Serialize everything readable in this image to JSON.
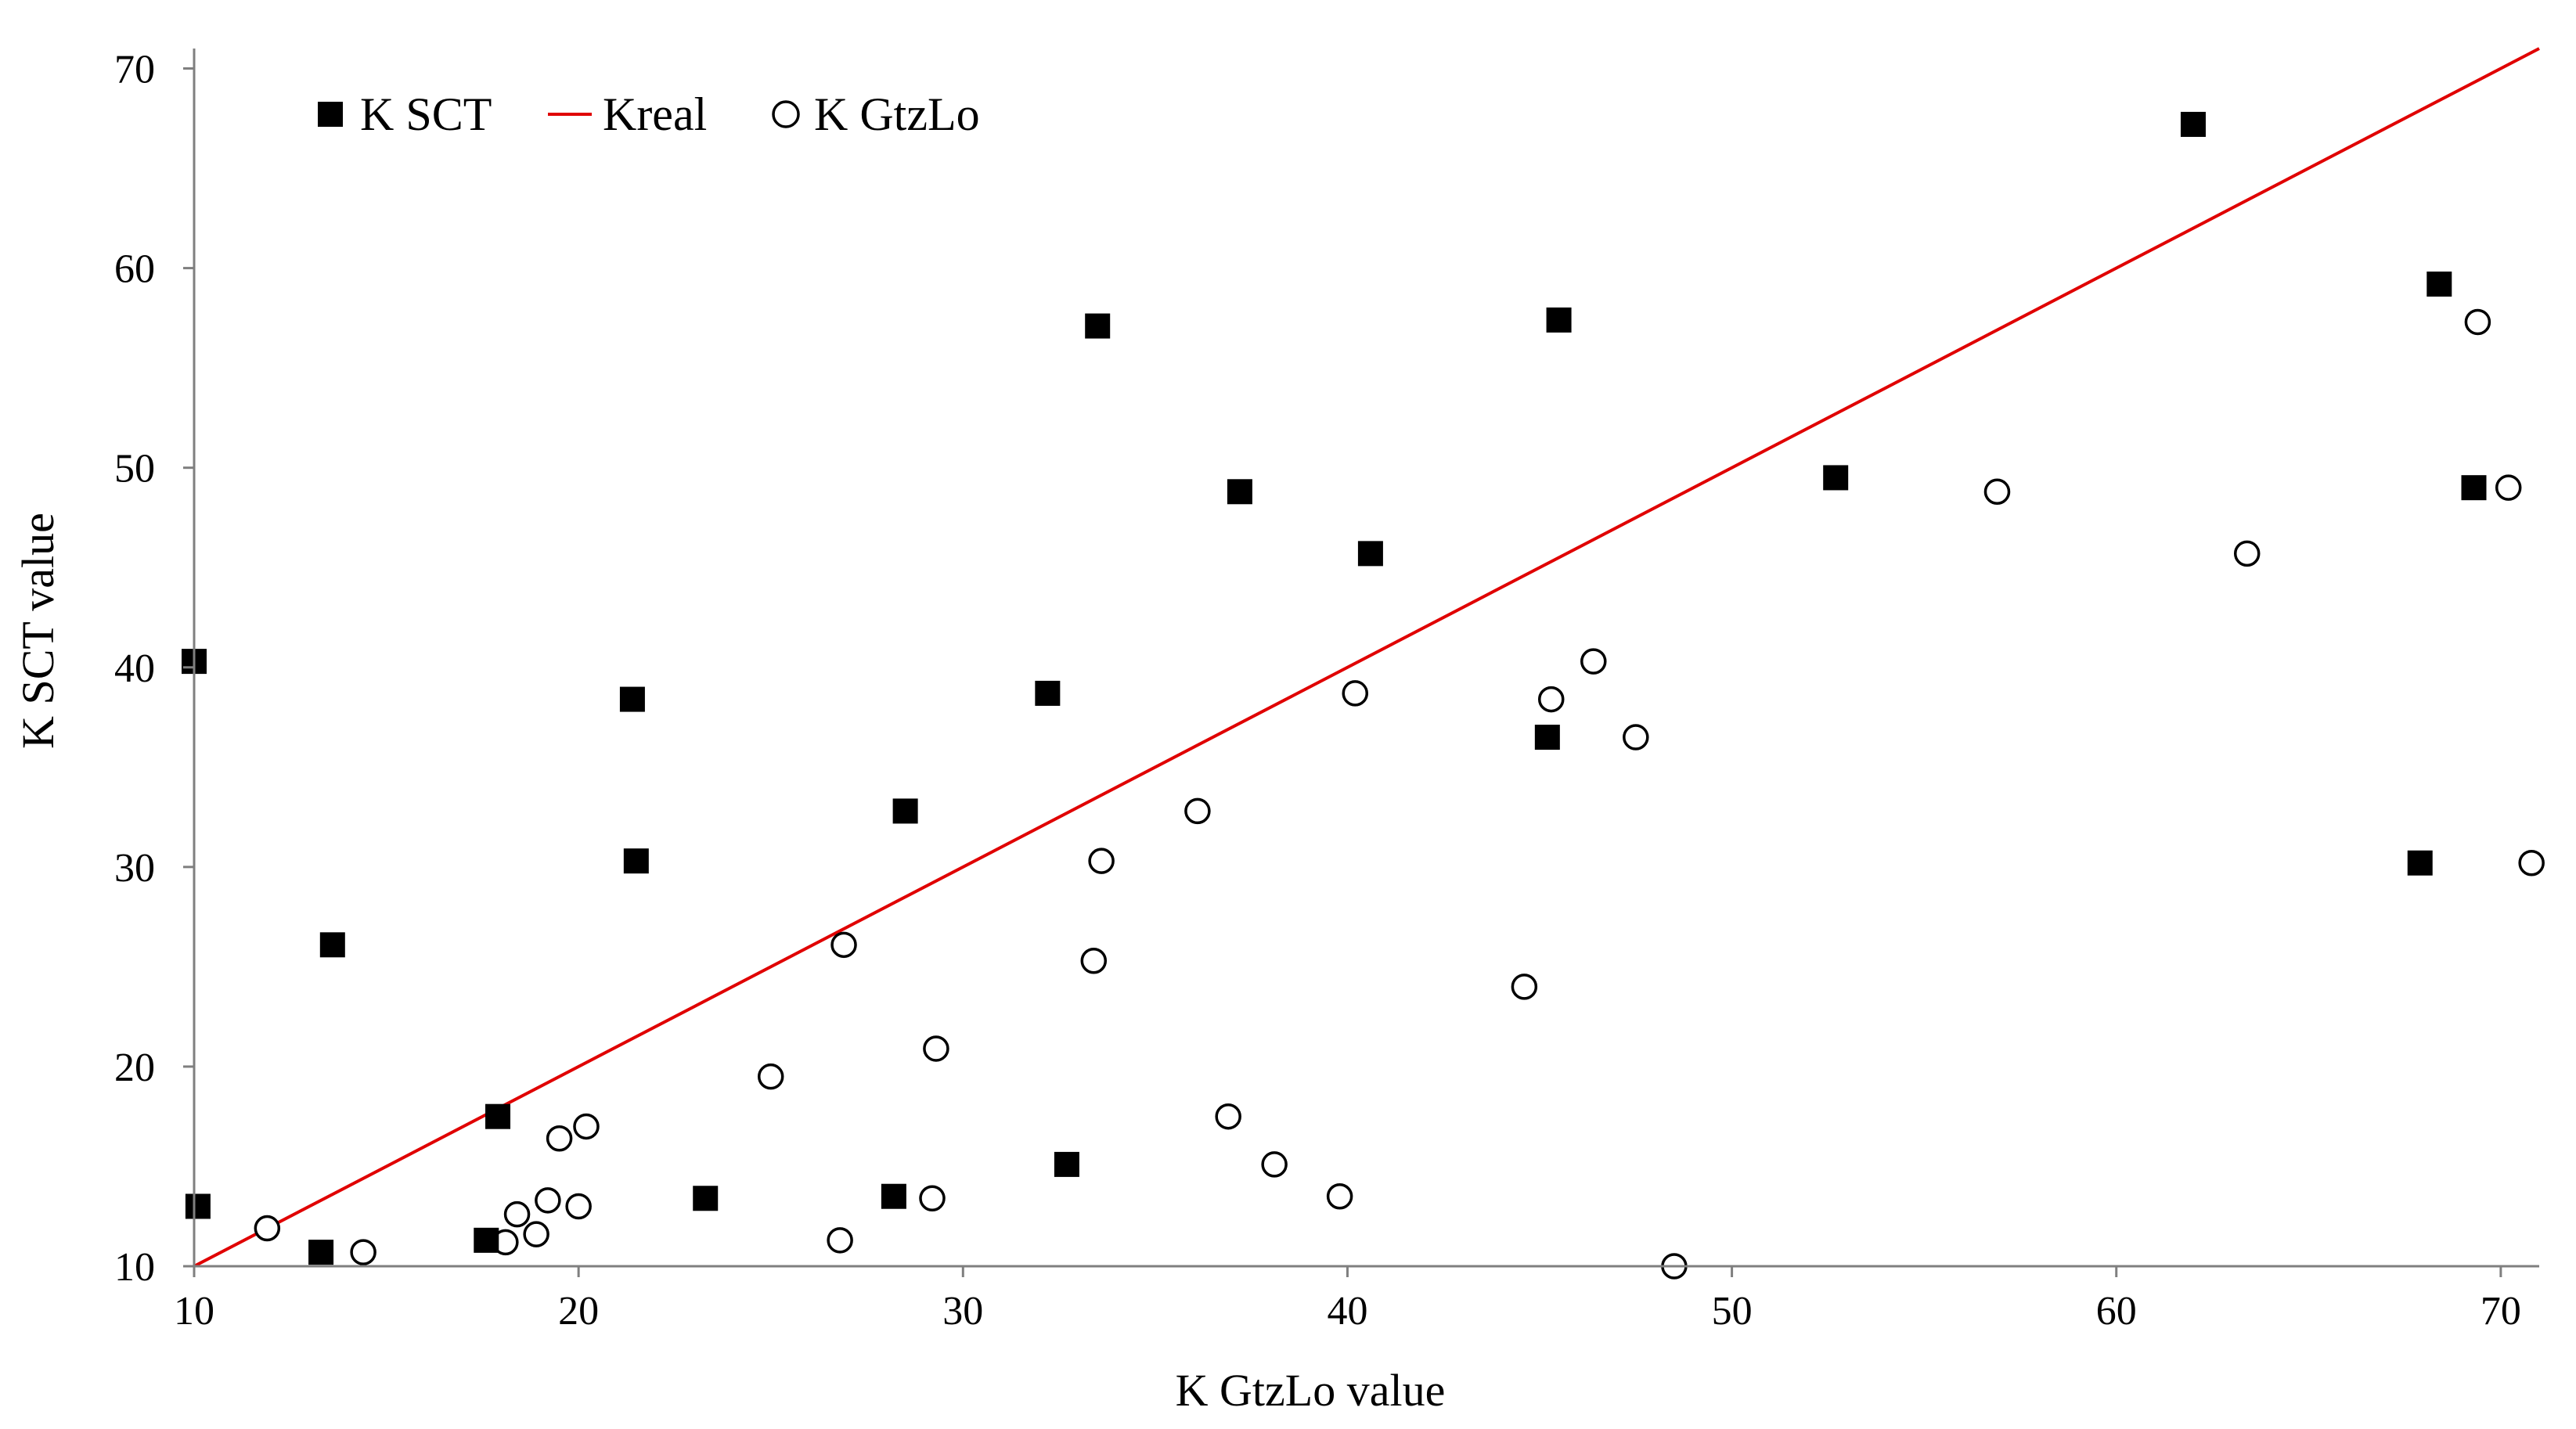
{
  "chart_data": {
    "type": "scatter",
    "title": "",
    "xlabel": "K GtzLo value",
    "ylabel": "K  SCT  value",
    "xlim": [
      10,
      71
    ],
    "ylim": [
      10,
      71
    ],
    "x_ticks": [
      "10",
      "20",
      "30",
      "40",
      "50",
      "60",
      "70"
    ],
    "y_ticks": [
      "10",
      "20",
      "30",
      "40",
      "50",
      "60",
      "70"
    ],
    "grid": false,
    "legend_position": "top-left",
    "series": [
      {
        "name": "K SCT",
        "marker": "filled-square",
        "color": "#000000",
        "points": [
          [
            10.0,
            40.3
          ],
          [
            10.1,
            13.0
          ],
          [
            13.3,
            10.7
          ],
          [
            13.6,
            26.1
          ],
          [
            17.6,
            11.3
          ],
          [
            17.9,
            17.5
          ],
          [
            21.4,
            38.4
          ],
          [
            21.5,
            30.3
          ],
          [
            23.3,
            13.4
          ],
          [
            28.2,
            13.5
          ],
          [
            28.5,
            32.8
          ],
          [
            32.2,
            38.7
          ],
          [
            32.7,
            15.1
          ],
          [
            33.5,
            57.1
          ],
          [
            37.2,
            48.8
          ],
          [
            40.6,
            45.7
          ],
          [
            45.2,
            36.5
          ],
          [
            45.5,
            57.4
          ],
          [
            52.7,
            49.5
          ],
          [
            62.0,
            67.2
          ],
          [
            67.9,
            30.2
          ],
          [
            68.4,
            59.2
          ],
          [
            69.3,
            49.0
          ]
        ]
      },
      {
        "name": "Kreal",
        "marker": "line",
        "color": "#e00000",
        "points": [
          [
            10,
            10
          ],
          [
            71,
            71
          ]
        ]
      },
      {
        "name": "K GtzLo",
        "marker": "open-circle",
        "color": "#000000",
        "points": [
          [
            11.9,
            11.9
          ],
          [
            14.4,
            10.7
          ],
          [
            18.1,
            11.2
          ],
          [
            18.4,
            12.6
          ],
          [
            18.9,
            11.6
          ],
          [
            19.2,
            13.3
          ],
          [
            19.5,
            16.4
          ],
          [
            20.0,
            13.0
          ],
          [
            20.2,
            17.0
          ],
          [
            25.0,
            19.5
          ],
          [
            26.8,
            11.3
          ],
          [
            26.9,
            26.1
          ],
          [
            29.2,
            13.4
          ],
          [
            29.3,
            20.9
          ],
          [
            33.4,
            25.3
          ],
          [
            33.6,
            30.3
          ],
          [
            36.1,
            32.8
          ],
          [
            36.9,
            17.5
          ],
          [
            38.1,
            15.1
          ],
          [
            39.8,
            13.5
          ],
          [
            40.2,
            38.7
          ],
          [
            44.6,
            24.0
          ],
          [
            45.3,
            38.4
          ],
          [
            46.4,
            40.3
          ],
          [
            47.5,
            36.5
          ],
          [
            48.5,
            10.0
          ],
          [
            56.9,
            48.8
          ],
          [
            63.4,
            45.7
          ],
          [
            69.4,
            57.3
          ],
          [
            70.2,
            49.0
          ],
          [
            70.8,
            30.2
          ]
        ]
      }
    ]
  }
}
